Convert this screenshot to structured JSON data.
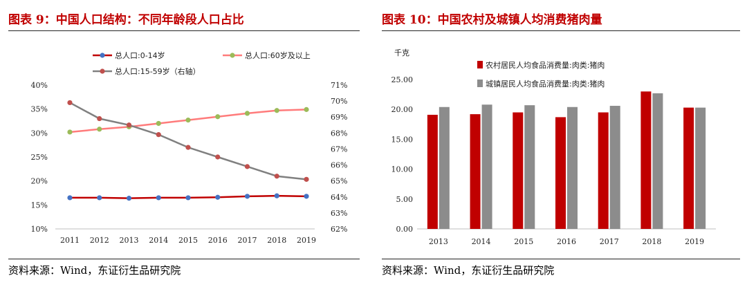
{
  "left": {
    "title": "图表 9：中国人口结构：不同年龄段人口占比",
    "source": "资料来源：Wind，东证衍生品研究院"
  },
  "right": {
    "title": "图表 10：中国农村及城镇人均消费猪肉量",
    "source": "资料来源：Wind，东证衍生品研究院"
  },
  "chart_data": [
    {
      "type": "line",
      "x": [
        "2011",
        "2012",
        "2013",
        "2014",
        "2015",
        "2016",
        "2017",
        "2018",
        "2019"
      ],
      "y_left_ticks": [
        "10%",
        "15%",
        "20%",
        "25%",
        "30%",
        "35%",
        "40%"
      ],
      "y_right_ticks": [
        "62%",
        "63%",
        "64%",
        "65%",
        "66%",
        "67%",
        "68%",
        "69%",
        "70%",
        "71%"
      ],
      "ylim_left": [
        10,
        40
      ],
      "ylim_right": [
        62,
        71
      ],
      "grid": false,
      "legend": "top",
      "series": [
        {
          "name": "总人口:0-14岁",
          "axis": "left",
          "color": "#c00000",
          "marker": "#4472c4",
          "values": [
            16.5,
            16.5,
            16.4,
            16.5,
            16.5,
            16.6,
            16.8,
            16.9,
            16.8
          ]
        },
        {
          "name": "总人口:60岁及以上",
          "axis": "left",
          "color": "#ff7b7b",
          "marker": "#9bbb59",
          "values": [
            30.2,
            30.8,
            31.3,
            32.0,
            32.7,
            33.4,
            34.1,
            34.7,
            34.9
          ]
        },
        {
          "name": "总人口:15-59岁（右轴）",
          "axis": "right",
          "color": "#808080",
          "marker": "#c0504d",
          "values": [
            69.9,
            68.9,
            68.5,
            67.9,
            67.1,
            66.5,
            65.9,
            65.3,
            65.1
          ]
        }
      ]
    },
    {
      "type": "bar",
      "categories": [
        "2013",
        "2014",
        "2015",
        "2016",
        "2017",
        "2018",
        "2019"
      ],
      "ylabel": "千克",
      "y_ticks": [
        "0.00",
        "5.00",
        "10.00",
        "15.00",
        "20.00",
        "25.00"
      ],
      "ylim": [
        0,
        25
      ],
      "grid": false,
      "legend": "top-left",
      "series": [
        {
          "name": "农村居民人均食品消费量:肉类:猪肉",
          "color": "#c00000",
          "values": [
            19.1,
            19.2,
            19.5,
            18.7,
            19.5,
            23.0,
            20.3
          ]
        },
        {
          "name": "城镇居民人均食品消费量:肉类:猪肉",
          "color": "#8c8c8c",
          "values": [
            20.4,
            20.8,
            20.7,
            20.4,
            20.6,
            22.7,
            20.3
          ]
        }
      ]
    }
  ]
}
